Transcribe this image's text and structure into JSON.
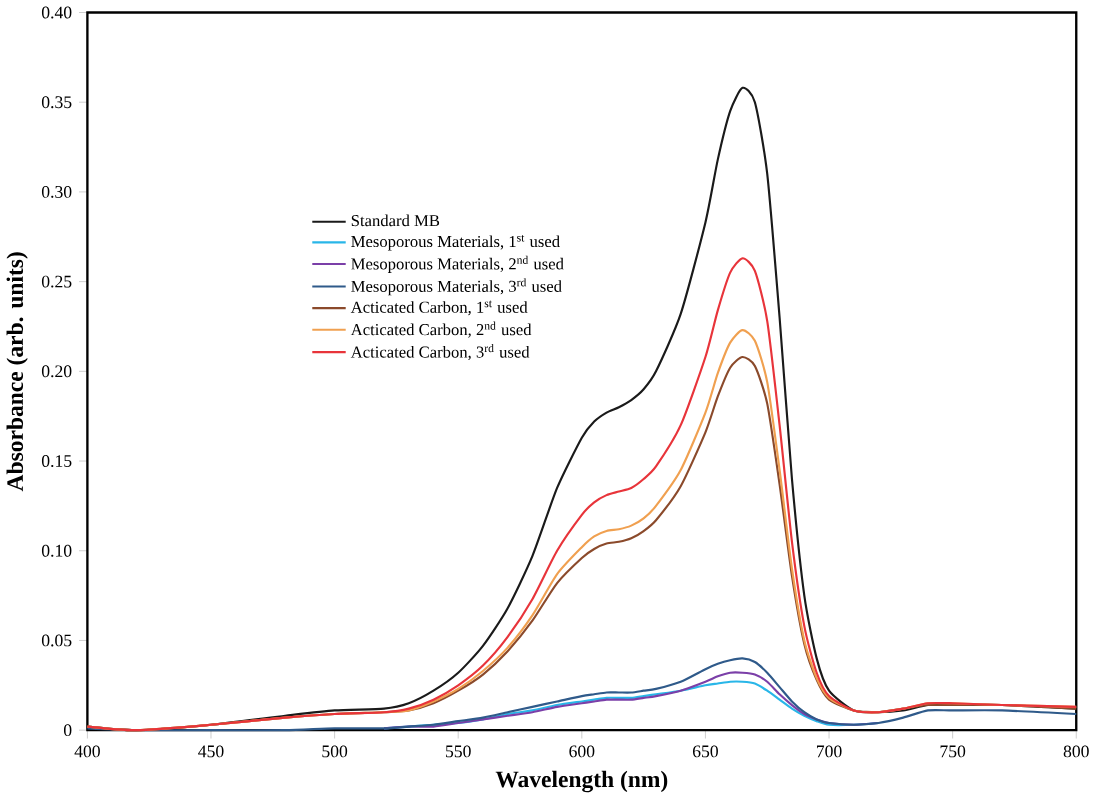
{
  "chart_data": {
    "type": "line",
    "xlabel": "Wavelength (nm)",
    "ylabel": "Absorbance (arb. units)",
    "x": [
      400,
      420,
      450,
      480,
      500,
      520,
      530,
      540,
      550,
      560,
      570,
      580,
      590,
      600,
      605,
      610,
      615,
      620,
      625,
      630,
      640,
      650,
      655,
      660,
      665,
      670,
      675,
      680,
      685,
      690,
      695,
      700,
      710,
      720,
      730,
      740,
      750,
      770,
      800
    ],
    "series": [
      {
        "name": "Standard MB",
        "color": "#1a1a1a",
        "values": [
          0.002,
          0,
          0.003,
          0.008,
          0.011,
          0.012,
          0.015,
          0.022,
          0.032,
          0.047,
          0.068,
          0.097,
          0.135,
          0.163,
          0.172,
          0.177,
          0.18,
          0.184,
          0.19,
          0.2,
          0.232,
          0.283,
          0.318,
          0.345,
          0.358,
          0.35,
          0.31,
          0.23,
          0.14,
          0.075,
          0.04,
          0.022,
          0.011,
          0.01,
          0.011,
          0.014,
          0.014,
          0.014,
          0.012
        ]
      },
      {
        "name": "Mesoporous Materials, 1$^{st}$ used",
        "color": "#29b6e8",
        "values": [
          null,
          null,
          null,
          null,
          null,
          0.001,
          0.002,
          0.003,
          0.004,
          0.006,
          0.009,
          0.011,
          0.014,
          0.016,
          0.017,
          0.018,
          0.018,
          0.018,
          0.019,
          0.02,
          0.022,
          0.025,
          0.026,
          0.027,
          0.027,
          0.026,
          0.022,
          0.017,
          0.012,
          0.008,
          0.005,
          0.003,
          0.003,
          0.004,
          null,
          null,
          null,
          null,
          null
        ]
      },
      {
        "name": "Mesoporous Materials, 2$^{nd}$ used",
        "color": "#7b3fa8",
        "values": [
          null,
          null,
          null,
          null,
          null,
          0.001,
          0.002,
          0.002,
          0.004,
          0.006,
          0.008,
          0.01,
          0.013,
          0.015,
          0.016,
          0.017,
          0.017,
          0.017,
          0.018,
          0.019,
          0.022,
          0.027,
          0.03,
          0.032,
          0.032,
          0.031,
          0.027,
          0.02,
          0.014,
          0.009,
          0.006,
          0.004,
          0.003,
          0.004,
          null,
          null,
          null,
          null,
          null
        ]
      },
      {
        "name": "Mesoporous Materials, 3$^{rd}$ used",
        "color": "#2f5a8a",
        "values": [
          0.001,
          0,
          0,
          0,
          0.001,
          0.001,
          0.002,
          0.003,
          0.005,
          0.007,
          0.01,
          0.013,
          0.016,
          0.019,
          0.02,
          0.021,
          0.021,
          0.021,
          0.022,
          0.023,
          0.027,
          0.034,
          0.037,
          0.039,
          0.04,
          0.038,
          0.032,
          0.024,
          0.016,
          0.01,
          0.006,
          0.004,
          0.003,
          0.004,
          0.007,
          0.011,
          0.011,
          0.011,
          0.009
        ]
      },
      {
        "name": "Acticated Carbon, 1$^{st}$ used",
        "color": "#8b4a2b",
        "values": [
          0.002,
          0,
          0.003,
          0.007,
          0.009,
          0.01,
          0.011,
          0.015,
          0.022,
          0.031,
          0.044,
          0.061,
          0.082,
          0.096,
          0.101,
          0.104,
          0.105,
          0.107,
          0.111,
          0.117,
          0.136,
          0.166,
          0.186,
          0.202,
          0.208,
          0.203,
          0.182,
          0.137,
          0.086,
          0.048,
          0.028,
          0.017,
          0.011,
          0.01,
          0.012,
          0.014,
          0.014,
          0.014,
          0.012
        ]
      },
      {
        "name": "Acticated Carbon, 2$^{nd}$ used",
        "color": "#f0a050",
        "values": [
          0.002,
          0,
          0.003,
          0.007,
          0.009,
          0.01,
          0.011,
          0.016,
          0.023,
          0.033,
          0.046,
          0.064,
          0.087,
          0.102,
          0.108,
          0.111,
          0.112,
          0.114,
          0.118,
          0.125,
          0.145,
          0.177,
          0.199,
          0.216,
          0.223,
          0.217,
          0.194,
          0.145,
          0.09,
          0.05,
          0.029,
          0.018,
          0.011,
          0.01,
          0.012,
          0.015,
          0.015,
          0.014,
          0.013
        ]
      },
      {
        "name": "Acticated Carbon, 3$^{rd}$ used",
        "color": "#e8343a",
        "values": [
          0.002,
          0,
          0.003,
          0.007,
          0.009,
          0.01,
          0.012,
          0.017,
          0.025,
          0.036,
          0.052,
          0.073,
          0.1,
          0.12,
          0.127,
          0.131,
          0.133,
          0.135,
          0.14,
          0.147,
          0.17,
          0.208,
          0.234,
          0.255,
          0.263,
          0.256,
          0.228,
          0.17,
          0.105,
          0.058,
          0.032,
          0.019,
          0.011,
          0.01,
          0.012,
          0.015,
          0.015,
          0.014,
          0.013
        ]
      }
    ],
    "xlim": [
      400,
      800
    ],
    "ylim": [
      0,
      0.4
    ],
    "xticks": [
      400,
      450,
      500,
      550,
      600,
      650,
      700,
      750,
      800
    ],
    "yticks": [
      0,
      {
        "value": 0.05,
        "label": "0.05"
      },
      {
        "value": 0.1,
        "label": "0.10"
      },
      {
        "value": 0.15,
        "label": "0.15"
      },
      {
        "value": 0.2,
        "label": "0.20"
      },
      {
        "value": 0.25,
        "label": "0.25"
      },
      {
        "value": 0.3,
        "label": "0.30"
      },
      {
        "value": 0.35,
        "label": "0.35"
      },
      {
        "value": 0.4,
        "label": "0.40"
      }
    ],
    "legend": "top left",
    "grid": false,
    "marker": "none",
    "line_style": "solid"
  }
}
